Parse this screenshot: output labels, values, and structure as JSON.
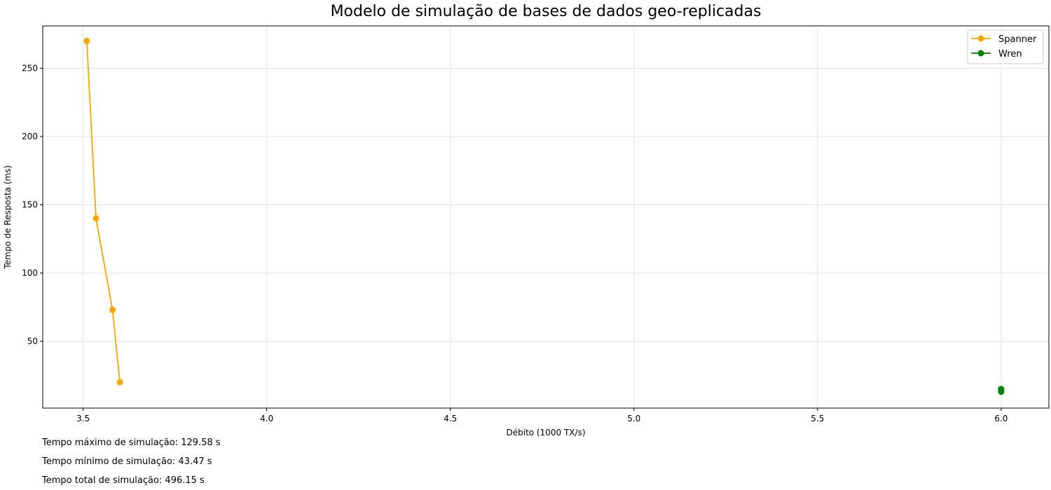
{
  "chart_data": {
    "type": "line",
    "title": "Modelo de simulação de bases de dados geo-replicadas",
    "xlabel": "Débito (1000 TX/s)",
    "ylabel": "Tempo de Resposta (ms)",
    "xlim": [
      3.39,
      6.13
    ],
    "ylim": [
      1,
      281
    ],
    "xticks": [
      3.5,
      4.0,
      4.5,
      5.0,
      5.5,
      6.0
    ],
    "xtick_labels": [
      "3.5",
      "4.0",
      "4.5",
      "5.0",
      "5.5",
      "6.0"
    ],
    "yticks": [
      50,
      100,
      150,
      200,
      250
    ],
    "ytick_labels": [
      "50",
      "100",
      "150",
      "200",
      "250"
    ],
    "grid": true,
    "legend_position": "top-right",
    "series": [
      {
        "name": "Spanner",
        "color": "#ffa500",
        "marker": "circle",
        "x": [
          3.51,
          3.535,
          3.58,
          3.6
        ],
        "y": [
          270,
          140,
          73,
          20
        ]
      },
      {
        "name": "Wren",
        "color": "#008000",
        "marker": "circle",
        "x": [
          6.0,
          6.0,
          6.0
        ],
        "y": [
          13,
          14,
          15
        ]
      }
    ]
  },
  "footer": {
    "max_time": "Tempo máximo de simulação: 129.58 s",
    "min_time": "Tempo mínimo de simulação: 43.47 s",
    "total_time": "Tempo total de simulação: 496.15 s"
  }
}
